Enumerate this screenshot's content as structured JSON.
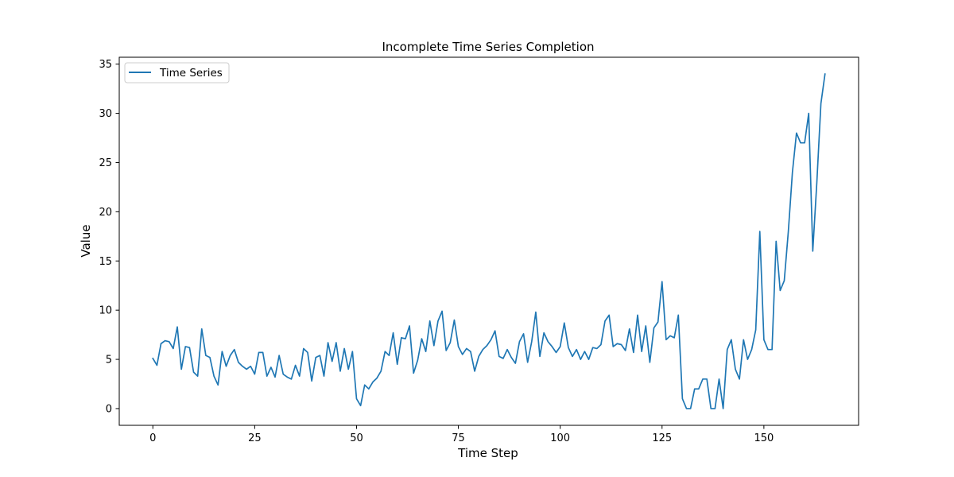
{
  "chart_data": {
    "type": "line",
    "title": "Incomplete Time Series Completion",
    "xlabel": "Time Step",
    "ylabel": "Value",
    "xlim": [
      -8.25,
      173.25
    ],
    "ylim": [
      -1.7,
      35.7
    ],
    "xticks": [
      0,
      25,
      50,
      75,
      100,
      125,
      150
    ],
    "yticks": [
      0,
      5,
      10,
      15,
      20,
      25,
      30,
      35
    ],
    "grid": false,
    "legend_position": "upper-left",
    "series": [
      {
        "name": "Time Series",
        "color": "#1f77b4",
        "x": [
          0,
          1,
          2,
          3,
          4,
          5,
          6,
          7,
          8,
          9,
          10,
          11,
          12,
          13,
          14,
          15,
          16,
          17,
          18,
          19,
          20,
          21,
          22,
          23,
          24,
          25,
          26,
          27,
          28,
          29,
          30,
          31,
          32,
          33,
          34,
          35,
          36,
          37,
          38,
          39,
          40,
          41,
          42,
          43,
          44,
          45,
          46,
          47,
          48,
          49,
          50,
          51,
          52,
          53,
          54,
          55,
          56,
          57,
          58,
          59,
          60,
          61,
          62,
          63,
          64,
          65,
          66,
          67,
          68,
          69,
          70,
          71,
          72,
          73,
          74,
          75,
          76,
          77,
          78,
          79,
          80,
          81,
          82,
          83,
          84,
          85,
          86,
          87,
          88,
          89,
          90,
          91,
          92,
          93,
          94,
          95,
          96,
          97,
          98,
          99,
          100,
          101,
          102,
          103,
          104,
          105,
          106,
          107,
          108,
          109,
          110,
          111,
          112,
          113,
          114,
          115,
          116,
          117,
          118,
          119,
          120,
          121,
          122,
          123,
          124,
          125,
          126,
          127,
          128,
          129,
          130,
          131,
          132,
          133,
          134,
          135,
          136,
          137,
          138,
          139,
          140,
          141,
          142,
          143,
          144,
          145,
          146,
          147,
          148,
          149,
          150,
          151,
          152,
          153,
          154,
          155,
          156,
          157,
          158,
          159,
          160,
          161,
          162,
          163,
          164,
          165
        ],
        "values": [
          5.1,
          4.4,
          6.6,
          6.9,
          6.8,
          6.1,
          8.3,
          4.0,
          6.3,
          6.2,
          3.7,
          3.3,
          8.1,
          5.4,
          5.2,
          3.3,
          2.4,
          5.8,
          4.3,
          5.4,
          6.0,
          4.7,
          4.3,
          4.0,
          4.3,
          3.5,
          5.7,
          5.7,
          3.3,
          4.2,
          3.2,
          5.4,
          3.5,
          3.2,
          3.0,
          4.4,
          3.3,
          6.1,
          5.7,
          2.8,
          5.2,
          5.4,
          3.3,
          6.7,
          4.8,
          6.7,
          3.8,
          6.1,
          4.0,
          5.8,
          1.0,
          0.3,
          2.4,
          2.0,
          2.7,
          3.1,
          3.8,
          5.8,
          5.4,
          7.7,
          4.5,
          7.2,
          7.1,
          8.4,
          3.6,
          4.9,
          7.1,
          5.8,
          8.9,
          6.4,
          8.9,
          9.9,
          5.9,
          6.7,
          9.0,
          6.3,
          5.5,
          6.1,
          5.8,
          3.8,
          5.3,
          6.0,
          6.4,
          7.0,
          7.9,
          5.3,
          5.1,
          6.0,
          5.2,
          4.6,
          6.8,
          7.6,
          4.7,
          6.8,
          9.8,
          5.3,
          7.7,
          6.8,
          6.3,
          5.7,
          6.3,
          8.7,
          6.2,
          5.3,
          6.0,
          5.0,
          5.8,
          5.0,
          6.2,
          6.1,
          6.5,
          8.9,
          9.5,
          6.3,
          6.6,
          6.5,
          5.9,
          8.1,
          5.7,
          9.5,
          5.8,
          8.4,
          4.7,
          8.2,
          8.8,
          12.9,
          7.0,
          7.4,
          7.2,
          9.5,
          1.0,
          0.0,
          0.0,
          2.0,
          2.0,
          3.0,
          3.0,
          0.0,
          0.0,
          3.0,
          0.0,
          6.0,
          7.0,
          4.0,
          3.0,
          7.0,
          5.0,
          6.0,
          8.0,
          18.0,
          7.0,
          6.0,
          6.0,
          17.0,
          12.0,
          13.0,
          18.0,
          24.0,
          28.0,
          27.0,
          27.0,
          30.0,
          16.0,
          23.0,
          31.0,
          34.0
        ]
      }
    ]
  }
}
